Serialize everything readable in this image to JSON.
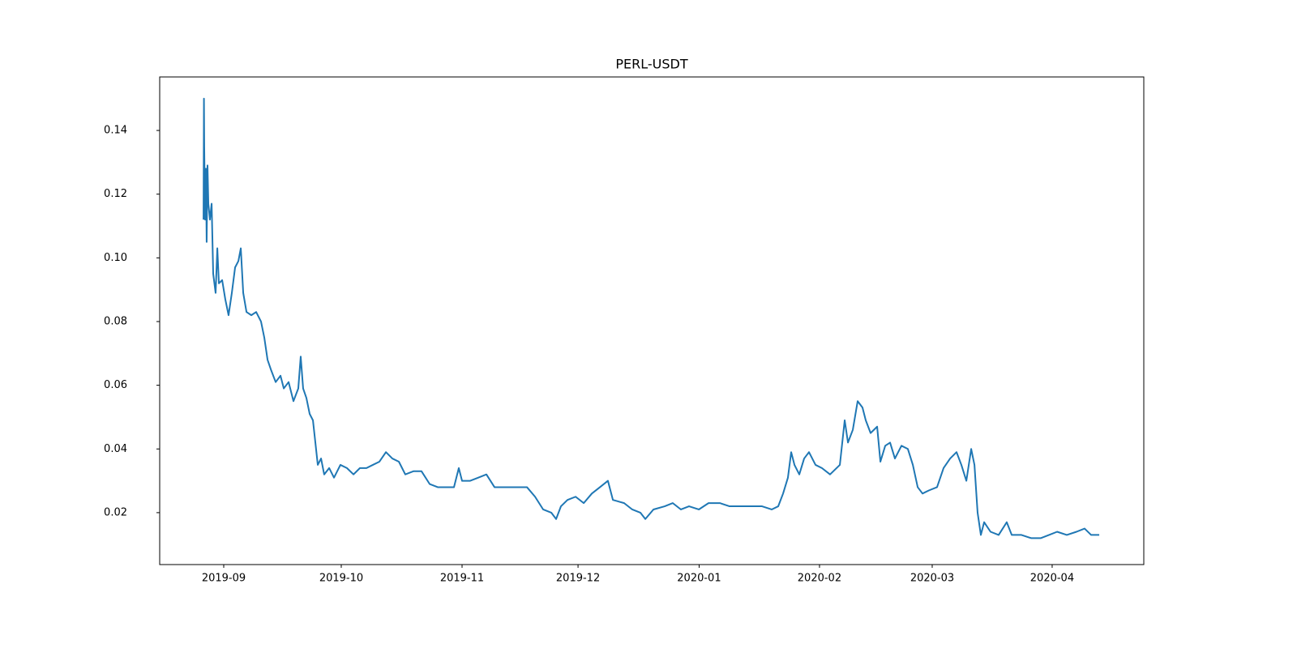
{
  "chart_data": {
    "type": "line",
    "title": "PERL-USDT",
    "color": "#1f77b4",
    "x": [
      2019.6517,
      2019.652,
      2019.6522,
      2019.6528,
      2019.6534,
      2019.6539,
      2019.6545,
      2019.6551,
      2019.6562,
      2019.6574,
      2019.6579,
      2019.6585,
      2019.6602,
      2019.6614,
      2019.6625,
      2019.6648,
      2019.667,
      2019.6693,
      2019.6716,
      2019.6739,
      2019.6762,
      2019.6779,
      2019.6796,
      2019.6819,
      2019.6853,
      2019.6887,
      2019.6921,
      2019.6944,
      2019.6967,
      2019.699,
      2019.7024,
      2019.7058,
      2019.7081,
      2019.7115,
      2019.7149,
      2019.7183,
      2019.72,
      2019.7217,
      2019.724,
      2019.7263,
      2019.7286,
      2019.7303,
      2019.732,
      2019.7343,
      2019.7365,
      2019.74,
      2019.7434,
      2019.7479,
      2019.7525,
      2019.7571,
      2019.7616,
      2019.7662,
      2019.7707,
      2019.7753,
      2019.7799,
      2019.7844,
      2019.789,
      2019.7935,
      2019.7992,
      2019.8049,
      2019.8106,
      2019.8163,
      2019.822,
      2019.8277,
      2019.8311,
      2019.8334,
      2019.8391,
      2019.8448,
      2019.8505,
      2019.8562,
      2019.8619,
      2019.8676,
      2019.8733,
      2019.879,
      2019.8847,
      2019.8904,
      2019.8961,
      2019.8995,
      2019.9029,
      2019.9075,
      2019.9132,
      2019.9189,
      2019.9246,
      2019.9303,
      2019.9359,
      2019.9394,
      2019.9473,
      2019.953,
      2019.9587,
      2019.9622,
      2019.9679,
      2019.9758,
      2019.9815,
      2019.9872,
      2019.9929,
      2019.9998,
      2020.0066,
      2020.0146,
      2020.0214,
      2020.0328,
      2020.0442,
      2020.051,
      2020.0556,
      2020.059,
      2020.0624,
      2020.0647,
      2020.067,
      2020.0704,
      2020.0738,
      2020.0772,
      2020.0818,
      2020.0863,
      2020.092,
      2020.0989,
      2020.1023,
      2020.1046,
      2020.108,
      2020.1114,
      2020.1148,
      2020.1171,
      2020.1205,
      2020.1251,
      2020.1274,
      2020.1308,
      2020.1342,
      2020.1376,
      2020.1422,
      2020.1467,
      2020.1502,
      2020.1536,
      2020.157,
      2020.1616,
      2020.1672,
      2020.1718,
      2020.1764,
      2020.1809,
      2020.1843,
      2020.1878,
      2020.1912,
      2020.1935,
      2020.1957,
      2020.198,
      2020.2003,
      2020.2048,
      2020.2105,
      2020.2162,
      2020.2197,
      2020.2265,
      2020.2333,
      2020.2402,
      2020.2459,
      2020.2516,
      2020.2584,
      2020.2652,
      2020.2709,
      2020.2755,
      2020.2812
    ],
    "values": [
      0.112,
      0.15,
      0.135,
      0.112,
      0.128,
      0.105,
      0.129,
      0.117,
      0.112,
      0.117,
      0.107,
      0.095,
      0.089,
      0.103,
      0.092,
      0.093,
      0.087,
      0.082,
      0.089,
      0.097,
      0.099,
      0.103,
      0.089,
      0.083,
      0.082,
      0.083,
      0.08,
      0.075,
      0.068,
      0.065,
      0.061,
      0.063,
      0.059,
      0.061,
      0.055,
      0.059,
      0.069,
      0.059,
      0.056,
      0.051,
      0.049,
      0.042,
      0.035,
      0.037,
      0.032,
      0.034,
      0.031,
      0.035,
      0.034,
      0.032,
      0.034,
      0.034,
      0.035,
      0.036,
      0.039,
      0.037,
      0.036,
      0.032,
      0.033,
      0.033,
      0.029,
      0.028,
      0.028,
      0.028,
      0.034,
      0.03,
      0.03,
      0.031,
      0.032,
      0.028,
      0.028,
      0.028,
      0.028,
      0.028,
      0.025,
      0.021,
      0.02,
      0.018,
      0.022,
      0.024,
      0.025,
      0.023,
      0.026,
      0.028,
      0.03,
      0.024,
      0.023,
      0.021,
      0.02,
      0.018,
      0.021,
      0.022,
      0.023,
      0.021,
      0.022,
      0.021,
      0.023,
      0.023,
      0.022,
      0.022,
      0.022,
      0.021,
      0.022,
      0.026,
      0.031,
      0.039,
      0.035,
      0.032,
      0.037,
      0.039,
      0.035,
      0.034,
      0.032,
      0.035,
      0.049,
      0.042,
      0.046,
      0.055,
      0.053,
      0.049,
      0.045,
      0.047,
      0.036,
      0.041,
      0.042,
      0.037,
      0.041,
      0.04,
      0.035,
      0.028,
      0.026,
      0.027,
      0.028,
      0.034,
      0.037,
      0.039,
      0.035,
      0.03,
      0.04,
      0.035,
      0.02,
      0.013,
      0.017,
      0.014,
      0.013,
      0.017,
      0.013,
      0.013,
      0.012,
      0.012,
      0.013,
      0.014,
      0.013,
      0.014,
      0.015,
      0.013,
      0.013
    ],
    "xlim": [
      2019.6209,
      2020.3125
    ],
    "xticks": [
      {
        "value": 2019.6659,
        "label": "2019-09"
      },
      {
        "value": 2019.7485,
        "label": "2019-10"
      },
      {
        "value": 2019.8334,
        "label": "2019-11"
      },
      {
        "value": 2019.9149,
        "label": "2019-12"
      },
      {
        "value": 2020.0,
        "label": "2020-01"
      },
      {
        "value": 2020.0846,
        "label": "2020-02"
      },
      {
        "value": 2020.1638,
        "label": "2020-03"
      },
      {
        "value": 2020.2481,
        "label": "2020-04"
      }
    ],
    "ylim": [
      0.0037,
      0.1568
    ],
    "yticks": [
      0.02,
      0.04,
      0.06,
      0.08,
      {
        "value": 0.1,
        "label": "0.10"
      },
      0.12,
      0.14
    ]
  }
}
